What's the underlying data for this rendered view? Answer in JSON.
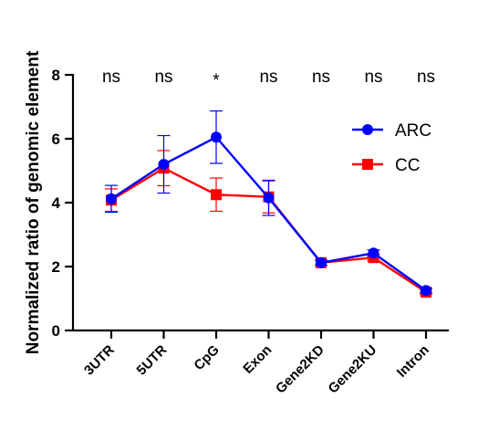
{
  "chart_data": {
    "type": "line",
    "title": "",
    "xlabel": "",
    "ylabel": "Normalized ratio of genomic element",
    "ylim": [
      0,
      8
    ],
    "yticks": [
      0,
      2,
      4,
      6,
      8
    ],
    "categories": [
      "3UTR",
      "5UTR",
      "CpG",
      "Exon",
      "Gene2KD",
      "Gene2KU",
      "Intron"
    ],
    "significance": [
      "ns",
      "ns",
      "*",
      "ns",
      "ns",
      "ns",
      "ns"
    ],
    "grid": false,
    "legend_position": "right",
    "series": [
      {
        "name": "CC",
        "color": "#ff0000",
        "marker": "square",
        "values": [
          4.08,
          5.08,
          4.25,
          4.18,
          2.12,
          2.28,
          1.2
        ],
        "error": [
          0.35,
          0.55,
          0.52,
          0.5,
          0.08,
          0.1,
          0.07
        ]
      },
      {
        "name": "ARC",
        "color": "#0000ff",
        "marker": "circle",
        "values": [
          4.12,
          5.2,
          6.05,
          4.15,
          2.12,
          2.42,
          1.25
        ],
        "error": [
          0.42,
          0.9,
          0.82,
          0.55,
          0.08,
          0.1,
          0.07
        ]
      }
    ],
    "legend_order": [
      "ARC",
      "CC"
    ]
  }
}
